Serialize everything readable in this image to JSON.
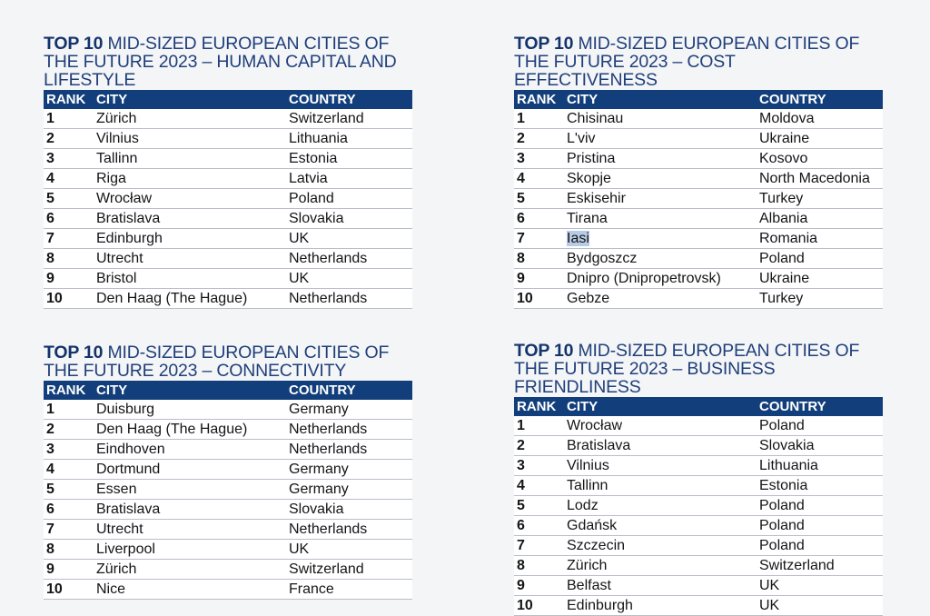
{
  "headers": {
    "rank": "RANK",
    "city": "CITY",
    "country": "COUNTRY"
  },
  "tables": [
    {
      "title_bold": "TOP 10",
      "title_rest": " MID-SIZED EUROPEAN CITIES OF THE FUTURE 2023 – HUMAN CAPITAL AND LIFESTYLE",
      "rows": [
        {
          "rank": "1",
          "city": "Zürich",
          "country": "Switzerland"
        },
        {
          "rank": "2",
          "city": "Vilnius",
          "country": "Lithuania"
        },
        {
          "rank": "3",
          "city": "Tallinn",
          "country": "Estonia"
        },
        {
          "rank": "4",
          "city": "Riga",
          "country": "Latvia"
        },
        {
          "rank": "5",
          "city": "Wrocław",
          "country": "Poland"
        },
        {
          "rank": "6",
          "city": "Bratislava",
          "country": "Slovakia"
        },
        {
          "rank": "7",
          "city": "Edinburgh",
          "country": "UK"
        },
        {
          "rank": "8",
          "city": "Utrecht",
          "country": "Netherlands"
        },
        {
          "rank": "9",
          "city": "Bristol",
          "country": "UK"
        },
        {
          "rank": "10",
          "city": "Den Haag (The Hague)",
          "country": "Netherlands"
        }
      ]
    },
    {
      "title_bold": "TOP 10",
      "title_rest": " MID-SIZED EUROPEAN CITIES OF THE FUTURE 2023 – COST EFFECTIVENESS",
      "rows": [
        {
          "rank": "1",
          "city": "Chisinau",
          "country": "Moldova"
        },
        {
          "rank": "2",
          "city": "L'viv",
          "country": "Ukraine"
        },
        {
          "rank": "3",
          "city": "Pristina",
          "country": "Kosovo"
        },
        {
          "rank": "4",
          "city": "Skopje",
          "country": "North Macedonia"
        },
        {
          "rank": "5",
          "city": "Eskisehir",
          "country": "Turkey"
        },
        {
          "rank": "6",
          "city": "Tirana",
          "country": "Albania"
        },
        {
          "rank": "7",
          "city": "Iasi",
          "country": "Romania"
        },
        {
          "rank": "8",
          "city": "Bydgoszcz",
          "country": "Poland"
        },
        {
          "rank": "9",
          "city": "Dnipro (Dnipropetrovsk)",
          "country": "Ukraine"
        },
        {
          "rank": "10",
          "city": "Gebze",
          "country": "Turkey"
        }
      ]
    },
    {
      "title_bold": "TOP 10",
      "title_rest": " MID-SIZED EUROPEAN CITIES OF THE FUTURE 2023 – CONNECTIVITY",
      "rows": [
        {
          "rank": "1",
          "city": "Duisburg",
          "country": "Germany"
        },
        {
          "rank": "2",
          "city": "Den Haag (The Hague)",
          "country": "Netherlands"
        },
        {
          "rank": "3",
          "city": "Eindhoven",
          "country": "Netherlands"
        },
        {
          "rank": "4",
          "city": "Dortmund",
          "country": "Germany"
        },
        {
          "rank": "5",
          "city": "Essen",
          "country": "Germany"
        },
        {
          "rank": "6",
          "city": "Bratislava",
          "country": "Slovakia"
        },
        {
          "rank": "7",
          "city": "Utrecht",
          "country": "Netherlands"
        },
        {
          "rank": "8",
          "city": "Liverpool",
          "country": "UK"
        },
        {
          "rank": "9",
          "city": "Zürich",
          "country": "Switzerland"
        },
        {
          "rank": "10",
          "city": "Nice",
          "country": "France"
        }
      ]
    },
    {
      "title_bold": "TOP 10",
      "title_rest": " MID-SIZED EUROPEAN CITIES OF THE FUTURE 2023 – BUSINESS FRIENDLINESS",
      "rows": [
        {
          "rank": "1",
          "city": "Wrocław",
          "country": "Poland"
        },
        {
          "rank": "2",
          "city": "Bratislava",
          "country": "Slovakia"
        },
        {
          "rank": "3",
          "city": "Vilnius",
          "country": "Lithuania"
        },
        {
          "rank": "4",
          "city": "Tallinn",
          "country": "Estonia"
        },
        {
          "rank": "5",
          "city": "Lodz",
          "country": "Poland"
        },
        {
          "rank": "6",
          "city": "Gdańsk",
          "country": "Poland"
        },
        {
          "rank": "7",
          "city": "Szczecin",
          "country": "Poland"
        },
        {
          "rank": "8",
          "city": "Zürich",
          "country": "Switzerland"
        },
        {
          "rank": "9",
          "city": "Belfast",
          "country": "UK"
        },
        {
          "rank": "10",
          "city": "Edinburgh",
          "country": "UK"
        }
      ]
    }
  ],
  "selection": {
    "table": 1,
    "row": 6,
    "field": "city",
    "highlight_color": "#b7cbe6"
  }
}
